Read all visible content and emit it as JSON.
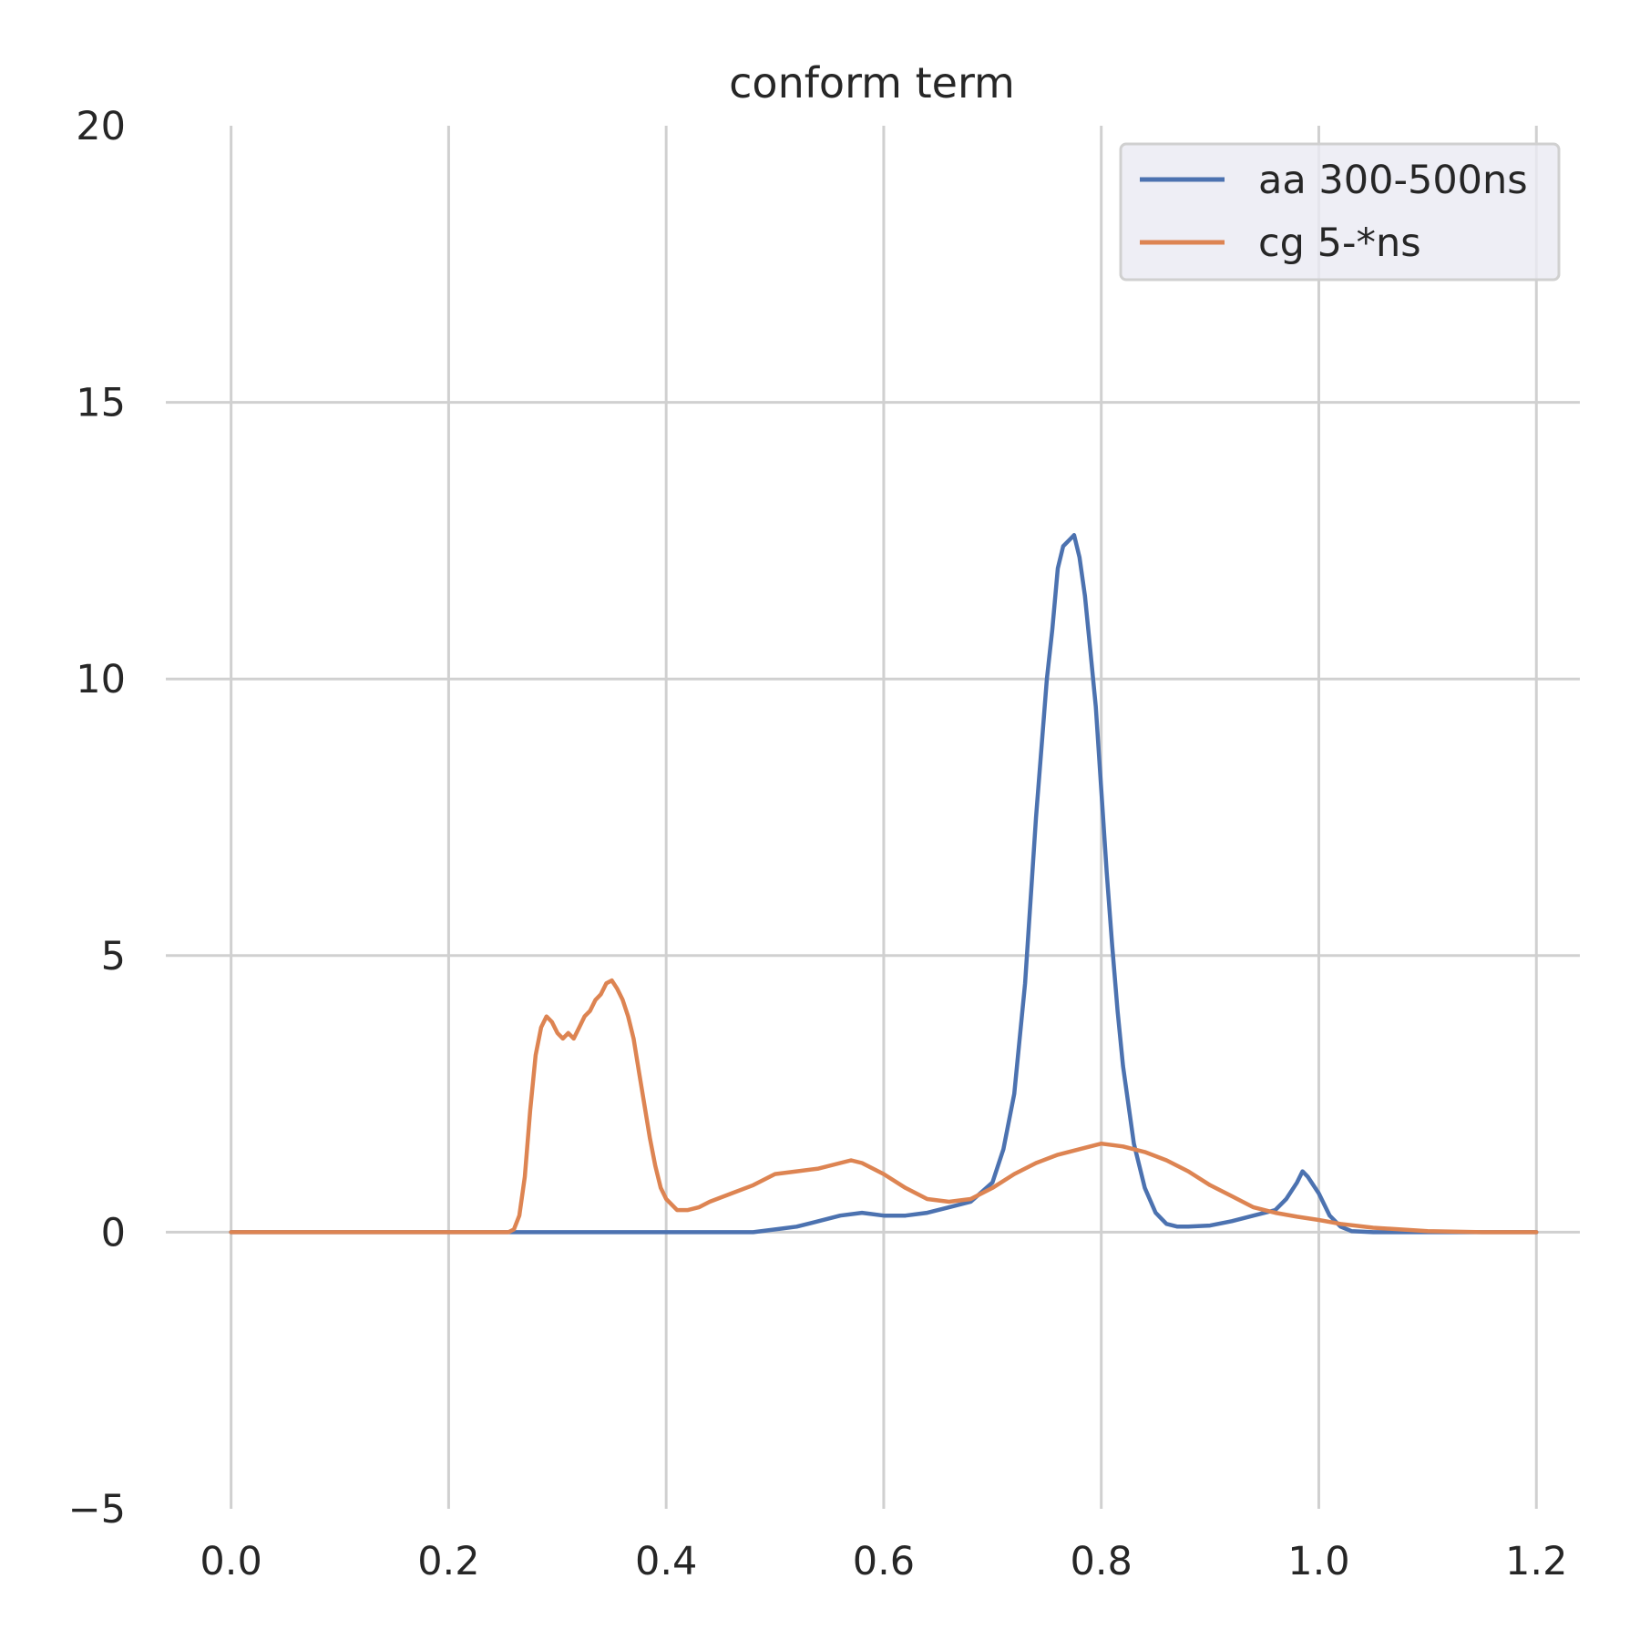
{
  "chart_data": {
    "type": "line",
    "title": "conform term",
    "xlabel": "",
    "ylabel": "",
    "xlim": [
      -0.06,
      1.24
    ],
    "ylim": [
      -5,
      20
    ],
    "xticks": [
      0.0,
      0.2,
      0.4,
      0.6,
      0.8,
      1.0,
      1.2
    ],
    "xtick_labels": [
      "0.0",
      "0.2",
      "0.4",
      "0.6",
      "0.8",
      "1.0",
      "1.2"
    ],
    "yticks": [
      -5,
      0,
      5,
      10,
      15,
      20
    ],
    "ytick_labels": [
      "−5",
      "0",
      "5",
      "10",
      "15",
      "20"
    ],
    "grid": true,
    "legend_position": "top-right",
    "series": [
      {
        "name": "aa 300-500ns",
        "color": "#4c72b0",
        "x": [
          0.0,
          0.25,
          0.3,
          0.35,
          0.4,
          0.45,
          0.48,
          0.5,
          0.52,
          0.54,
          0.56,
          0.58,
          0.6,
          0.62,
          0.64,
          0.66,
          0.68,
          0.7,
          0.71,
          0.72,
          0.73,
          0.74,
          0.75,
          0.755,
          0.76,
          0.765,
          0.77,
          0.775,
          0.78,
          0.785,
          0.79,
          0.795,
          0.8,
          0.805,
          0.81,
          0.815,
          0.82,
          0.83,
          0.84,
          0.85,
          0.86,
          0.87,
          0.88,
          0.9,
          0.92,
          0.94,
          0.96,
          0.97,
          0.98,
          0.985,
          0.99,
          1.0,
          1.01,
          1.02,
          1.03,
          1.05,
          1.1,
          1.2
        ],
        "y": [
          0.0,
          0.0,
          0.0,
          0.0,
          0.0,
          0.0,
          0.0,
          0.05,
          0.1,
          0.2,
          0.3,
          0.35,
          0.3,
          0.3,
          0.35,
          0.45,
          0.55,
          0.9,
          1.5,
          2.5,
          4.5,
          7.5,
          10.0,
          10.9,
          12.0,
          12.4,
          12.5,
          12.6,
          12.2,
          11.5,
          10.5,
          9.5,
          8.0,
          6.5,
          5.2,
          4.0,
          3.0,
          1.6,
          0.8,
          0.35,
          0.15,
          0.1,
          0.1,
          0.12,
          0.2,
          0.3,
          0.4,
          0.6,
          0.9,
          1.1,
          1.0,
          0.7,
          0.3,
          0.1,
          0.02,
          0.0,
          0.0,
          0.0
        ]
      },
      {
        "name": "cg 5-*ns",
        "color": "#dd8452",
        "x": [
          0.0,
          0.255,
          0.26,
          0.265,
          0.27,
          0.275,
          0.28,
          0.285,
          0.29,
          0.295,
          0.3,
          0.305,
          0.31,
          0.315,
          0.32,
          0.325,
          0.33,
          0.335,
          0.34,
          0.345,
          0.35,
          0.355,
          0.36,
          0.365,
          0.37,
          0.375,
          0.38,
          0.385,
          0.39,
          0.395,
          0.4,
          0.41,
          0.42,
          0.43,
          0.44,
          0.46,
          0.48,
          0.5,
          0.52,
          0.54,
          0.56,
          0.57,
          0.58,
          0.6,
          0.62,
          0.64,
          0.66,
          0.68,
          0.7,
          0.72,
          0.74,
          0.76,
          0.78,
          0.8,
          0.82,
          0.84,
          0.86,
          0.88,
          0.9,
          0.92,
          0.94,
          0.96,
          0.98,
          1.0,
          1.02,
          1.05,
          1.1,
          1.15,
          1.2
        ],
        "y": [
          0.0,
          0.0,
          0.05,
          0.3,
          1.0,
          2.2,
          3.2,
          3.7,
          3.9,
          3.8,
          3.6,
          3.5,
          3.6,
          3.5,
          3.7,
          3.9,
          4.0,
          4.2,
          4.3,
          4.5,
          4.55,
          4.4,
          4.2,
          3.9,
          3.5,
          2.9,
          2.3,
          1.7,
          1.2,
          0.8,
          0.6,
          0.4,
          0.4,
          0.45,
          0.55,
          0.7,
          0.85,
          1.05,
          1.1,
          1.15,
          1.25,
          1.3,
          1.25,
          1.05,
          0.8,
          0.6,
          0.55,
          0.6,
          0.8,
          1.05,
          1.25,
          1.4,
          1.5,
          1.6,
          1.55,
          1.45,
          1.3,
          1.1,
          0.85,
          0.65,
          0.45,
          0.35,
          0.28,
          0.22,
          0.15,
          0.08,
          0.02,
          0.0,
          0.0
        ]
      }
    ]
  }
}
